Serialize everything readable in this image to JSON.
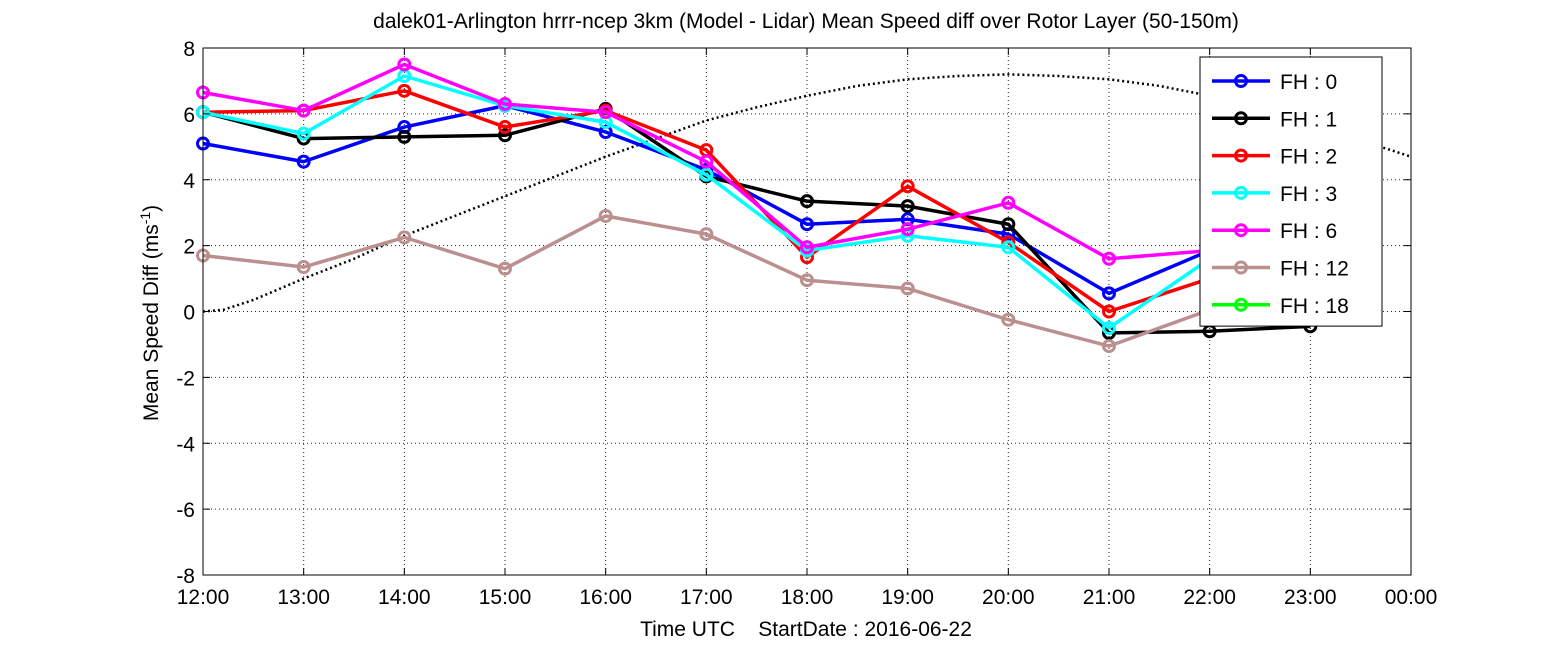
{
  "chart_data": {
    "type": "line",
    "title": "dalek01-Arlington hrrr-ncep 3km (Model - Lidar) Mean Speed diff over Rotor Layer (50-150m)",
    "xlabel": "Time UTC    StartDate : 2016-06-22",
    "ylabel_main": "Mean Speed Diff (ms",
    "ylabel_sup": "-1",
    "ylabel_close": ")",
    "x_ticks": [
      "12:00",
      "13:00",
      "14:00",
      "15:00",
      "16:00",
      "17:00",
      "18:00",
      "19:00",
      "20:00",
      "21:00",
      "22:00",
      "23:00",
      "00:00"
    ],
    "y_ticks": [
      "8",
      "6",
      "4",
      "2",
      "0",
      "-2",
      "-4",
      "-6",
      "-8"
    ],
    "xlim": [
      0,
      12
    ],
    "ylim": [
      -8,
      8
    ],
    "grid": true,
    "legend_position": "top-right",
    "series": [
      {
        "name": "FH : 0",
        "color": "#0000ff",
        "x": [
          0,
          1,
          2,
          3,
          4,
          5,
          6,
          7,
          8,
          9,
          10
        ],
        "values": [
          5.1,
          4.55,
          5.6,
          6.25,
          5.45,
          4.3,
          2.65,
          2.8,
          2.35,
          0.55,
          1.85
        ]
      },
      {
        "name": "FH : 1",
        "color": "#000000",
        "x": [
          0,
          1,
          2,
          3,
          4,
          5,
          6,
          7,
          8,
          9,
          10,
          11
        ],
        "values": [
          6.05,
          5.25,
          5.3,
          5.35,
          6.15,
          4.1,
          3.35,
          3.2,
          2.65,
          -0.65,
          -0.6,
          -0.45
        ]
      },
      {
        "name": "FH : 2",
        "color": "#ff0000",
        "x": [
          0,
          1,
          2,
          3,
          4,
          5,
          6,
          7,
          8,
          9,
          10
        ],
        "values": [
          6.05,
          6.1,
          6.7,
          5.6,
          6.1,
          4.9,
          1.65,
          3.8,
          2.1,
          0.0,
          1.0
        ]
      },
      {
        "name": "FH : 3",
        "color": "#00ffff",
        "x": [
          0,
          1,
          2,
          3,
          4,
          5,
          6,
          7,
          8,
          9,
          10
        ],
        "values": [
          6.05,
          5.4,
          7.15,
          6.25,
          5.75,
          4.15,
          1.85,
          2.3,
          1.95,
          -0.5,
          1.6
        ]
      },
      {
        "name": "FH : 6",
        "color": "#ff00ff",
        "x": [
          0,
          1,
          2,
          3,
          4,
          5,
          6,
          7,
          8,
          9,
          10
        ],
        "values": [
          6.65,
          6.1,
          7.5,
          6.3,
          6.05,
          4.55,
          1.95,
          2.5,
          3.3,
          1.6,
          1.85
        ]
      },
      {
        "name": "FH : 12",
        "color": "#bc8f8f",
        "x": [
          0,
          1,
          2,
          3,
          4,
          5,
          6,
          7,
          8,
          9,
          10
        ],
        "values": [
          1.7,
          1.35,
          2.25,
          1.3,
          2.9,
          2.35,
          0.95,
          0.7,
          -0.25,
          -1.05,
          0.05
        ]
      },
      {
        "name": "FH : 18",
        "color": "#00ff00",
        "x": [],
        "values": []
      }
    ],
    "reference_curve": {
      "style": "dotted",
      "color": "#000000",
      "x": [
        0,
        0.2,
        0.5,
        1,
        1.5,
        2,
        2.5,
        3,
        3.5,
        4,
        4.5,
        5,
        5.5,
        6,
        6.5,
        7,
        7.5,
        8,
        8.5,
        9,
        9.5,
        10,
        10.5,
        11,
        11.5,
        12
      ],
      "values": [
        0,
        0.05,
        0.35,
        1.0,
        1.6,
        2.3,
        2.9,
        3.5,
        4.1,
        4.7,
        5.25,
        5.8,
        6.2,
        6.55,
        6.85,
        7.05,
        7.15,
        7.2,
        7.15,
        7.05,
        6.85,
        6.55,
        6.1,
        5.65,
        5.2,
        4.7
      ]
    }
  }
}
